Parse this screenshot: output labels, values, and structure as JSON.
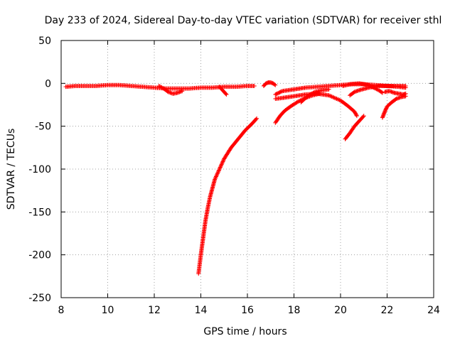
{
  "chart_data": {
    "type": "scatter",
    "title": "Day 233 of 2024, Sidereal Day-to-day VTEC variation (SDTVAR) for receiver sthl",
    "xlabel": "GPS time / hours",
    "ylabel": "SDTVAR / TECUs",
    "xlim": [
      8,
      24
    ],
    "ylim": [
      -250,
      50
    ],
    "xticks": [
      "8",
      "10",
      "12",
      "14",
      "16",
      "18",
      "20",
      "22",
      "24"
    ],
    "yticks": [
      "50",
      "0",
      "-50",
      "-100",
      "-150",
      "-200",
      "-250"
    ],
    "grid": true,
    "marker": "+",
    "color": "#ff0000",
    "series": [
      {
        "points": [
          [
            8.2,
            -4
          ],
          [
            8.6,
            -3
          ],
          [
            9.0,
            -3
          ],
          [
            9.5,
            -3
          ],
          [
            10.0,
            -2
          ],
          [
            10.5,
            -2
          ],
          [
            11.0,
            -3
          ],
          [
            11.5,
            -4
          ],
          [
            12.0,
            -5
          ],
          [
            12.5,
            -6
          ],
          [
            13.0,
            -6
          ],
          [
            13.5,
            -6
          ],
          [
            14.0,
            -5
          ],
          [
            14.5,
            -5
          ],
          [
            15.0,
            -4
          ],
          [
            15.5,
            -4
          ],
          [
            16.0,
            -3
          ],
          [
            16.3,
            -3
          ]
        ]
      },
      {
        "points": [
          [
            12.2,
            -3
          ],
          [
            12.4,
            -6
          ],
          [
            12.6,
            -10
          ],
          [
            12.8,
            -12
          ],
          [
            13.0,
            -11
          ],
          [
            13.2,
            -9
          ]
        ]
      },
      {
        "points": [
          [
            14.8,
            -4
          ],
          [
            14.9,
            -7
          ],
          [
            15.0,
            -10
          ],
          [
            15.1,
            -13
          ]
        ]
      },
      {
        "points": [
          [
            13.9,
            -222
          ],
          [
            14.0,
            -200
          ],
          [
            14.1,
            -180
          ],
          [
            14.2,
            -160
          ],
          [
            14.3,
            -145
          ],
          [
            14.4,
            -132
          ],
          [
            14.5,
            -122
          ],
          [
            14.6,
            -112
          ],
          [
            14.8,
            -100
          ],
          [
            15.0,
            -88
          ],
          [
            15.3,
            -75
          ],
          [
            15.6,
            -65
          ],
          [
            15.9,
            -55
          ],
          [
            16.2,
            -47
          ],
          [
            16.4,
            -41
          ]
        ]
      },
      {
        "points": [
          [
            16.7,
            -3
          ],
          [
            16.8,
            0
          ],
          [
            16.9,
            1
          ],
          [
            17.0,
            1
          ],
          [
            17.1,
            0
          ],
          [
            17.2,
            -2
          ]
        ]
      },
      {
        "points": [
          [
            17.2,
            -13
          ],
          [
            17.5,
            -9
          ],
          [
            18.0,
            -7
          ],
          [
            18.5,
            -5
          ],
          [
            19.0,
            -4
          ],
          [
            19.5,
            -3
          ],
          [
            20.0,
            -2
          ],
          [
            20.5,
            -1
          ],
          [
            21.0,
            -1
          ],
          [
            21.5,
            -2
          ],
          [
            22.0,
            -3
          ],
          [
            22.5,
            -4
          ],
          [
            22.8,
            -5
          ]
        ]
      },
      {
        "points": [
          [
            17.2,
            -18
          ],
          [
            17.5,
            -17
          ],
          [
            18.0,
            -15
          ],
          [
            18.5,
            -13
          ],
          [
            19.0,
            -12
          ],
          [
            19.5,
            -14
          ],
          [
            20.0,
            -20
          ],
          [
            20.3,
            -26
          ],
          [
            20.6,
            -33
          ],
          [
            20.7,
            -38
          ]
        ]
      },
      {
        "points": [
          [
            17.2,
            -46
          ],
          [
            17.4,
            -38
          ],
          [
            17.6,
            -32
          ],
          [
            17.9,
            -26
          ],
          [
            18.2,
            -21
          ],
          [
            18.5,
            -17
          ],
          [
            18.8,
            -14
          ],
          [
            19.1,
            -12
          ]
        ]
      },
      {
        "points": [
          [
            18.3,
            -22
          ],
          [
            18.5,
            -17
          ],
          [
            18.7,
            -13
          ],
          [
            18.9,
            -10
          ],
          [
            19.2,
            -8
          ],
          [
            19.5,
            -7
          ]
        ]
      },
      {
        "points": [
          [
            20.2,
            -65
          ],
          [
            20.4,
            -58
          ],
          [
            20.6,
            -50
          ],
          [
            20.8,
            -44
          ],
          [
            21.0,
            -38
          ]
        ]
      },
      {
        "points": [
          [
            20.4,
            -14
          ],
          [
            20.6,
            -10
          ],
          [
            20.8,
            -8
          ],
          [
            21.2,
            -5
          ],
          [
            21.7,
            -3
          ],
          [
            22.2,
            -3
          ],
          [
            22.8,
            -3
          ]
        ]
      },
      {
        "points": [
          [
            20.1,
            -3
          ],
          [
            20.4,
            -1
          ],
          [
            20.8,
            0
          ],
          [
            21.2,
            -2
          ],
          [
            21.5,
            -6
          ],
          [
            21.7,
            -9
          ],
          [
            21.8,
            -11
          ]
        ]
      },
      {
        "points": [
          [
            21.8,
            -40
          ],
          [
            21.9,
            -33
          ],
          [
            22.0,
            -27
          ],
          [
            22.2,
            -22
          ],
          [
            22.4,
            -18
          ],
          [
            22.6,
            -16
          ],
          [
            22.8,
            -15
          ]
        ]
      },
      {
        "points": [
          [
            21.9,
            -10
          ],
          [
            22.1,
            -9
          ],
          [
            22.3,
            -11
          ],
          [
            22.5,
            -12
          ],
          [
            22.7,
            -13
          ],
          [
            22.8,
            -12
          ]
        ]
      }
    ]
  }
}
